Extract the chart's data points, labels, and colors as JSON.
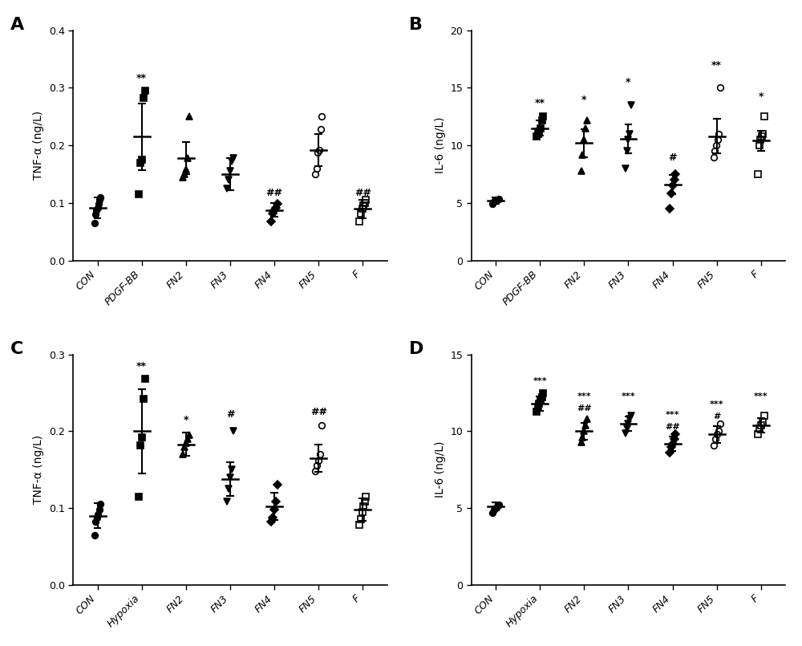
{
  "panels": [
    {
      "label": "A",
      "xlabel_groups": [
        "CON",
        "PDGF-BB",
        "FN2",
        "FN3",
        "FN4",
        "FN5",
        "F"
      ],
      "ylabel": "TNF-α (ng/L)",
      "ylim": [
        0.0,
        0.4
      ],
      "yticks": [
        0.0,
        0.1,
        0.2,
        0.3,
        0.4
      ],
      "markers": [
        "o",
        "s",
        "^",
        "v",
        "D",
        "o",
        "s"
      ],
      "filled": [
        true,
        true,
        true,
        true,
        true,
        false,
        false
      ],
      "means": [
        0.092,
        0.215,
        0.178,
        0.15,
        0.088,
        0.192,
        0.09
      ],
      "sds": [
        0.018,
        0.058,
        0.028,
        0.028,
        0.012,
        0.028,
        0.016
      ],
      "points": [
        [
          0.065,
          0.08,
          0.088,
          0.092,
          0.098,
          0.105,
          0.11
        ],
        [
          0.115,
          0.17,
          0.175,
          0.282,
          0.295
        ],
        [
          0.145,
          0.15,
          0.158,
          0.178,
          0.25
        ],
        [
          0.125,
          0.14,
          0.155,
          0.172,
          0.178
        ],
        [
          0.068,
          0.082,
          0.088,
          0.092,
          0.098
        ],
        [
          0.15,
          0.16,
          0.188,
          0.192,
          0.228,
          0.25
        ],
        [
          0.068,
          0.082,
          0.09,
          0.095,
          0.1,
          0.105
        ]
      ],
      "sig_labels": [
        "",
        "**",
        "",
        "",
        "##",
        "",
        "##"
      ],
      "sig_y": [
        0.0,
        0.308,
        0.0,
        0.0,
        0.108,
        0.0,
        0.108
      ]
    },
    {
      "label": "B",
      "xlabel_groups": [
        "CON",
        "PDGF-BB",
        "FN2",
        "FN3",
        "FN4",
        "FN5",
        "F"
      ],
      "ylabel": "IL-6 (ng/L)",
      "ylim": [
        0,
        20
      ],
      "yticks": [
        0,
        5,
        10,
        15,
        20
      ],
      "markers": [
        "o",
        "s",
        "^",
        "v",
        "D",
        "o",
        "s"
      ],
      "filled": [
        true,
        true,
        true,
        true,
        true,
        false,
        false
      ],
      "means": [
        5.2,
        11.5,
        10.2,
        10.6,
        6.6,
        10.8,
        10.4
      ],
      "sds": [
        0.25,
        0.65,
        1.2,
        1.25,
        0.85,
        1.5,
        0.85
      ],
      "points": [
        [
          4.9,
          5.1,
          5.2,
          5.25,
          5.3,
          5.35
        ],
        [
          10.8,
          11.0,
          11.2,
          11.5,
          12.2,
          12.5
        ],
        [
          7.8,
          9.2,
          10.5,
          11.5,
          12.2
        ],
        [
          8.0,
          9.5,
          10.5,
          11.0,
          13.5
        ],
        [
          4.5,
          5.8,
          6.5,
          7.0,
          7.5
        ],
        [
          9.0,
          9.5,
          10.0,
          10.5,
          11.0,
          15.0
        ],
        [
          7.5,
          10.0,
          10.5,
          10.8,
          11.0,
          12.5
        ]
      ],
      "sig_labels": [
        "",
        "**",
        "*",
        "*",
        "#",
        "**",
        "*"
      ],
      "sig_y": [
        0.0,
        13.2,
        13.5,
        15.0,
        8.5,
        16.5,
        13.8
      ]
    },
    {
      "label": "C",
      "xlabel_groups": [
        "CON",
        "Hypoxia",
        "FN2",
        "FN3",
        "FN4",
        "FN5",
        "F"
      ],
      "ylabel": "TNF-α (ng/L)",
      "ylim": [
        0.0,
        0.3
      ],
      "yticks": [
        0.0,
        0.1,
        0.2,
        0.3
      ],
      "markers": [
        "o",
        "s",
        "^",
        "v",
        "D",
        "o",
        "s"
      ],
      "filled": [
        true,
        true,
        true,
        true,
        true,
        false,
        false
      ],
      "means": [
        0.09,
        0.2,
        0.183,
        0.138,
        0.102,
        0.165,
        0.098
      ],
      "sds": [
        0.016,
        0.055,
        0.015,
        0.022,
        0.018,
        0.018,
        0.015
      ],
      "points": [
        [
          0.065,
          0.082,
          0.088,
          0.092,
          0.098,
          0.105
        ],
        [
          0.115,
          0.182,
          0.192,
          0.242,
          0.268
        ],
        [
          0.17,
          0.18,
          0.185,
          0.19,
          0.195
        ],
        [
          0.108,
          0.125,
          0.14,
          0.15,
          0.2
        ],
        [
          0.082,
          0.088,
          0.098,
          0.108,
          0.13
        ],
        [
          0.148,
          0.155,
          0.162,
          0.17,
          0.208
        ],
        [
          0.078,
          0.085,
          0.095,
          0.102,
          0.108,
          0.115
        ]
      ],
      "sig_labels": [
        "",
        "**",
        "*",
        "#",
        "",
        "##",
        ""
      ],
      "sig_y": [
        0.0,
        0.278,
        0.208,
        0.215,
        0.0,
        0.218,
        0.0
      ]
    },
    {
      "label": "D",
      "xlabel_groups": [
        "CON",
        "Hypoxia",
        "FN2",
        "FN3",
        "FN4",
        "FN5",
        "F"
      ],
      "ylabel": "IL-6 (ng/L)",
      "ylim": [
        0,
        15
      ],
      "yticks": [
        0,
        5,
        10,
        15
      ],
      "markers": [
        "o",
        "s",
        "^",
        "v",
        "D",
        "o",
        "s"
      ],
      "filled": [
        true,
        true,
        true,
        true,
        true,
        false,
        false
      ],
      "means": [
        5.1,
        11.8,
        10.0,
        10.5,
        9.2,
        9.8,
        10.4
      ],
      "sds": [
        0.28,
        0.45,
        0.55,
        0.48,
        0.48,
        0.55,
        0.48
      ],
      "points": [
        [
          4.7,
          4.9,
          5.0,
          5.1,
          5.2
        ],
        [
          11.3,
          11.6,
          11.8,
          12.0,
          12.2,
          12.5
        ],
        [
          9.3,
          9.6,
          10.0,
          10.4,
          10.8
        ],
        [
          9.85,
          10.2,
          10.5,
          10.8,
          11.0
        ],
        [
          8.6,
          9.0,
          9.2,
          9.5,
          9.8
        ],
        [
          9.1,
          9.5,
          9.8,
          10.0,
          10.5
        ],
        [
          9.8,
          10.2,
          10.4,
          10.6,
          11.0
        ]
      ],
      "sig_labels_top": [
        "",
        "***",
        "***",
        "***",
        "***",
        "***",
        "***"
      ],
      "sig_labels_bottom": [
        "",
        "",
        "##",
        "",
        "##",
        "#",
        ""
      ],
      "sig_y_top": [
        0.0,
        13.0,
        12.0,
        12.0,
        10.8,
        11.5,
        12.0
      ],
      "sig_y_bottom": [
        0.0,
        0.0,
        11.2,
        0.0,
        10.0,
        10.7,
        0.0
      ]
    }
  ]
}
